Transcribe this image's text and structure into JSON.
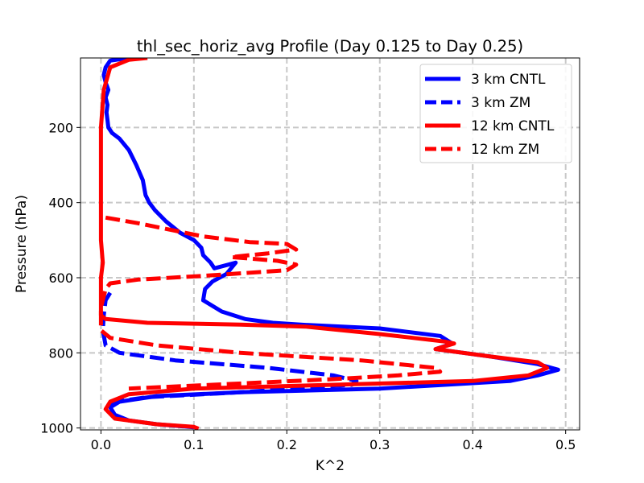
{
  "chart_data": {
    "type": "line",
    "title": "thl_sec_horiz_avg Profile (Day 0.125 to Day 0.25)",
    "xlabel": "K^2",
    "ylabel": "Pressure (hPa)",
    "xlim": [
      -0.022,
      0.515
    ],
    "ylim": [
      1005,
      15
    ],
    "y_inverted": true,
    "grid": true,
    "grid_style": "dashed",
    "legend_position": "upper right",
    "xticks": [
      0.0,
      0.1,
      0.2,
      0.3,
      0.4,
      0.5
    ],
    "xtick_labels": [
      "0.0",
      "0.1",
      "0.2",
      "0.3",
      "0.4",
      "0.5"
    ],
    "yticks": [
      200,
      400,
      600,
      800,
      1000
    ],
    "ytick_labels": [
      "200",
      "400",
      "600",
      "800",
      "1000"
    ],
    "series": [
      {
        "name": "3 km CNTL",
        "color": "#0000ff",
        "dash": "solid",
        "points": [
          [
            0.03,
            15
          ],
          [
            0.01,
            22
          ],
          [
            0.005,
            40
          ],
          [
            0.003,
            60
          ],
          [
            0.005,
            80
          ],
          [
            0.008,
            100
          ],
          [
            0.005,
            120
          ],
          [
            0.007,
            140
          ],
          [
            0.006,
            160
          ],
          [
            0.007,
            180
          ],
          [
            0.008,
            200
          ],
          [
            0.012,
            215
          ],
          [
            0.02,
            230
          ],
          [
            0.03,
            260
          ],
          [
            0.038,
            300
          ],
          [
            0.045,
            340
          ],
          [
            0.048,
            380
          ],
          [
            0.052,
            400
          ],
          [
            0.058,
            420
          ],
          [
            0.07,
            450
          ],
          [
            0.085,
            480
          ],
          [
            0.1,
            500
          ],
          [
            0.108,
            520
          ],
          [
            0.11,
            540
          ],
          [
            0.118,
            560
          ],
          [
            0.122,
            575
          ],
          [
            0.145,
            560
          ],
          [
            0.135,
            590
          ],
          [
            0.12,
            610
          ],
          [
            0.112,
            630
          ],
          [
            0.11,
            660
          ],
          [
            0.13,
            690
          ],
          [
            0.155,
            710
          ],
          [
            0.185,
            720
          ],
          [
            0.215,
            725
          ],
          [
            0.3,
            735
          ],
          [
            0.365,
            755
          ],
          [
            0.378,
            775
          ],
          [
            0.36,
            790
          ],
          [
            0.42,
            810
          ],
          [
            0.47,
            830
          ],
          [
            0.492,
            845
          ],
          [
            0.47,
            860
          ],
          [
            0.44,
            875
          ],
          [
            0.3,
            895
          ],
          [
            0.15,
            905
          ],
          [
            0.06,
            915
          ],
          [
            0.02,
            930
          ],
          [
            0.01,
            945
          ],
          [
            0.015,
            965
          ],
          [
            0.03,
            980
          ],
          [
            0.06,
            990
          ],
          [
            0.1,
            998
          ]
        ]
      },
      {
        "name": "3 km ZM",
        "color": "#0000ff",
        "dash": "dashed",
        "points": [
          [
            0.01,
            640
          ],
          [
            0.005,
            660
          ],
          [
            0.003,
            700
          ],
          [
            0.002,
            740
          ],
          [
            0.005,
            780
          ],
          [
            0.02,
            800
          ],
          [
            0.08,
            820
          ],
          [
            0.18,
            840
          ],
          [
            0.25,
            860
          ],
          [
            0.275,
            875
          ],
          [
            0.27,
            885
          ],
          [
            0.15,
            905
          ],
          [
            0.05,
            918
          ],
          [
            0.015,
            930
          ],
          [
            0.01,
            945
          ]
        ]
      },
      {
        "name": "12 km CNTL",
        "color": "#ff0000",
        "dash": "solid",
        "points": [
          [
            0.05,
            15
          ],
          [
            0.03,
            20
          ],
          [
            0.01,
            40
          ],
          [
            0.003,
            100
          ],
          [
            0.0,
            200
          ],
          [
            0.0,
            300
          ],
          [
            0.0,
            400
          ],
          [
            0.0,
            500
          ],
          [
            0.002,
            560
          ],
          [
            0.0,
            600
          ],
          [
            0.0,
            700
          ],
          [
            0.005,
            710
          ],
          [
            0.05,
            720
          ],
          [
            0.15,
            725
          ],
          [
            0.22,
            730
          ],
          [
            0.3,
            750
          ],
          [
            0.37,
            770
          ],
          [
            0.38,
            775
          ],
          [
            0.36,
            790
          ],
          [
            0.42,
            810
          ],
          [
            0.47,
            825
          ],
          [
            0.48,
            840
          ],
          [
            0.46,
            860
          ],
          [
            0.4,
            875
          ],
          [
            0.25,
            885
          ],
          [
            0.1,
            895
          ],
          [
            0.03,
            910
          ],
          [
            0.01,
            930
          ],
          [
            0.005,
            950
          ],
          [
            0.015,
            975
          ],
          [
            0.06,
            990
          ],
          [
            0.1,
            997
          ],
          [
            0.105,
            1002
          ]
        ]
      },
      {
        "name": "12 km ZM",
        "color": "#ff0000",
        "dash": "dashed",
        "points": [
          [
            0.005,
            440
          ],
          [
            0.04,
            455
          ],
          [
            0.07,
            470
          ],
          [
            0.11,
            490
          ],
          [
            0.16,
            505
          ],
          [
            0.2,
            510
          ],
          [
            0.21,
            525
          ],
          [
            0.18,
            535
          ],
          [
            0.14,
            545
          ],
          [
            0.19,
            555
          ],
          [
            0.21,
            565
          ],
          [
            0.2,
            580
          ],
          [
            0.11,
            595
          ],
          [
            0.04,
            605
          ],
          [
            0.01,
            615
          ],
          [
            0.005,
            630
          ],
          [
            0.0,
            680
          ],
          [
            0.0,
            740
          ],
          [
            0.01,
            760
          ],
          [
            0.06,
            780
          ],
          [
            0.15,
            800
          ],
          [
            0.28,
            820
          ],
          [
            0.36,
            840
          ],
          [
            0.365,
            850
          ],
          [
            0.32,
            860
          ],
          [
            0.25,
            870
          ],
          [
            0.12,
            885
          ],
          [
            0.03,
            895
          ]
        ]
      }
    ]
  }
}
